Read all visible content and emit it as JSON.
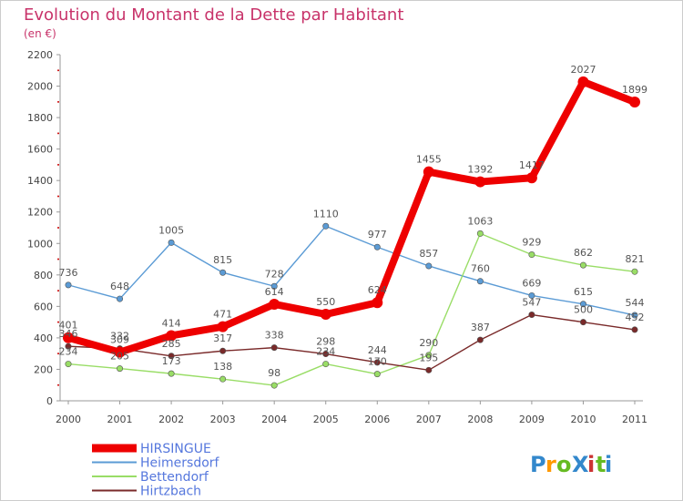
{
  "chart_data": {
    "type": "line",
    "title": "Evolution du Montant de la Dette par Habitant",
    "subtitle": "(en €)",
    "xlabel": "",
    "ylabel": "",
    "ylim": [
      0,
      2200
    ],
    "yticks": [
      0,
      200,
      400,
      600,
      800,
      1000,
      1200,
      1400,
      1600,
      1800,
      2000,
      2200
    ],
    "x": [
      "2000",
      "2001",
      "2002",
      "2003",
      "2004",
      "2005",
      "2006",
      "2007",
      "2008",
      "2009",
      "2010",
      "2011"
    ],
    "grid": false,
    "legend_position": "bottom-left",
    "series": [
      {
        "name": "Heimersdorf",
        "color": "#5b9bd5",
        "values": [
          736,
          648,
          1005,
          815,
          728,
          1110,
          977,
          857,
          760,
          669,
          615,
          544
        ]
      },
      {
        "name": "Bettendorf",
        "color": "#99dd66",
        "values": [
          234,
          205,
          173,
          138,
          98,
          234,
          170,
          290,
          1063,
          929,
          862,
          821
        ]
      },
      {
        "name": "Hirtzbach",
        "color": "#7a2a2a",
        "values": [
          346,
          332,
          285,
          317,
          338,
          298,
          244,
          195,
          387,
          547,
          500,
          452
        ]
      },
      {
        "name": "HIRSINGUE",
        "color": "#ee0000",
        "values": [
          401,
          309,
          414,
          471,
          614,
          550,
          624,
          1455,
          1392,
          1417,
          2027,
          1899
        ]
      }
    ]
  },
  "logo": {
    "text": "ProXiti",
    "colors": [
      "#3388cc",
      "#ff9900",
      "#66bb22",
      "#3388cc",
      "#cc3333",
      "#66bb22",
      "#3388cc"
    ]
  }
}
